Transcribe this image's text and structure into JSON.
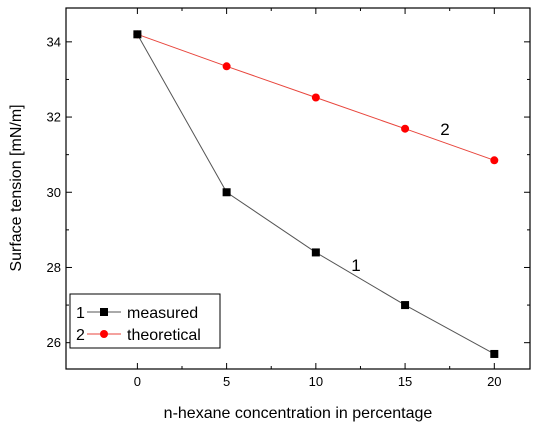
{
  "chart_data": {
    "type": "line",
    "title": "",
    "xlabel": "n-hexane concentration in percentage",
    "ylabel": "Surface tension [mN/m]",
    "xlim": [
      -4,
      22
    ],
    "ylim": [
      25.3,
      34.9
    ],
    "xticks": [
      0,
      5,
      10,
      15,
      20
    ],
    "yticks": [
      26,
      28,
      30,
      32,
      34
    ],
    "xtick_labels": [
      "0",
      "5",
      "10",
      "15",
      "20"
    ],
    "ytick_labels": [
      "26",
      "28",
      "30",
      "32",
      "34"
    ],
    "grid": false,
    "legend_position": "bottom-left",
    "series": [
      {
        "name": "measured",
        "legend_id": "1",
        "curve_label": "1",
        "marker": "square",
        "line_color": "#555555",
        "marker_color": "#000000",
        "x": [
          0,
          5,
          10,
          15,
          20
        ],
        "y": [
          34.2,
          30.0,
          28.4,
          27.0,
          25.7
        ]
      },
      {
        "name": "theoretical",
        "legend_id": "2",
        "curve_label": "2",
        "marker": "circle",
        "line_color": "#e8453c",
        "marker_color": "#ff0000",
        "x": [
          0,
          5,
          10,
          15,
          20
        ],
        "y": [
          34.2,
          33.35,
          32.52,
          31.69,
          30.85
        ]
      }
    ]
  }
}
